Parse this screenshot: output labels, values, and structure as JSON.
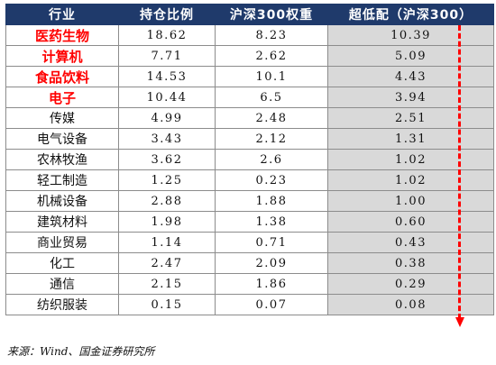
{
  "table": {
    "headers": [
      "行业",
      "持仓比例",
      "沪深300权重",
      "超低配（沪深300）"
    ],
    "rows": [
      {
        "industry": "医药生物",
        "holding": "18.62",
        "weight": "8.23",
        "overweight": "10.39",
        "highlight": true
      },
      {
        "industry": "计算机",
        "holding": "7.71",
        "weight": "2.62",
        "overweight": "5.09",
        "highlight": true
      },
      {
        "industry": "食品饮料",
        "holding": "14.53",
        "weight": "10.1",
        "overweight": "4.43",
        "highlight": true
      },
      {
        "industry": "电子",
        "holding": "10.44",
        "weight": "6.5",
        "overweight": "3.94",
        "highlight": true
      },
      {
        "industry": "传媒",
        "holding": "4.99",
        "weight": "2.48",
        "overweight": "2.51",
        "highlight": false
      },
      {
        "industry": "电气设备",
        "holding": "3.43",
        "weight": "2.12",
        "overweight": "1.31",
        "highlight": false
      },
      {
        "industry": "农林牧渔",
        "holding": "3.62",
        "weight": "2.6",
        "overweight": "1.02",
        "highlight": false
      },
      {
        "industry": "轻工制造",
        "holding": "1.25",
        "weight": "0.23",
        "overweight": "1.02",
        "highlight": false
      },
      {
        "industry": "机械设备",
        "holding": "2.88",
        "weight": "1.88",
        "overweight": "1.00",
        "highlight": false
      },
      {
        "industry": "建筑材料",
        "holding": "1.98",
        "weight": "1.38",
        "overweight": "0.60",
        "highlight": false
      },
      {
        "industry": "商业贸易",
        "holding": "1.14",
        "weight": "0.71",
        "overweight": "0.43",
        "highlight": false
      },
      {
        "industry": "化工",
        "holding": "2.47",
        "weight": "2.09",
        "overweight": "0.38",
        "highlight": false
      },
      {
        "industry": "通信",
        "holding": "2.15",
        "weight": "1.86",
        "overweight": "0.29",
        "highlight": false
      },
      {
        "industry": "纺织服装",
        "holding": "0.15",
        "weight": "0.07",
        "overweight": "0.08",
        "highlight": false
      }
    ]
  },
  "colors": {
    "header_bg": "#1f3a6b",
    "header_text": "#ffffff",
    "highlight_text": "#ff0000",
    "overweight_bg": "#d9d9d9",
    "arrow": "#ff0000"
  },
  "source": "来源：Wind、国金证券研究所"
}
